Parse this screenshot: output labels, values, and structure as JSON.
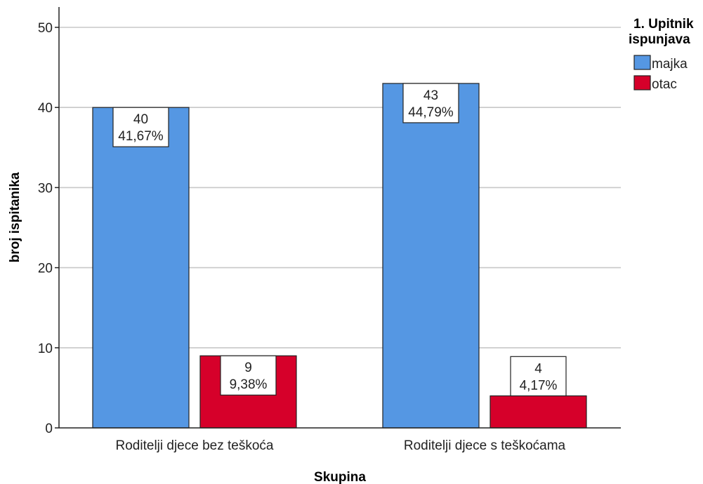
{
  "chart_data": {
    "type": "bar",
    "xlabel": "Skupina",
    "ylabel": "broj ispitanika",
    "ylim": [
      0,
      50
    ],
    "yticks": [
      0,
      10,
      20,
      30,
      40,
      50
    ],
    "grid": true,
    "categories": [
      "Roditelji djece bez teškoća",
      "Roditelji djece s teškoćama"
    ],
    "legend": {
      "title_lines": [
        "1. Upitnik",
        "ispunjava"
      ],
      "placement": "top-right"
    },
    "series": [
      {
        "name": "majka",
        "color": "#5597e3",
        "values": [
          40,
          43
        ],
        "percent_labels": [
          "41,67%",
          "44,79%"
        ]
      },
      {
        "name": "otac",
        "color": "#d6002a",
        "values": [
          9,
          4
        ],
        "percent_labels": [
          "9,38%",
          "4,17%"
        ]
      }
    ]
  }
}
